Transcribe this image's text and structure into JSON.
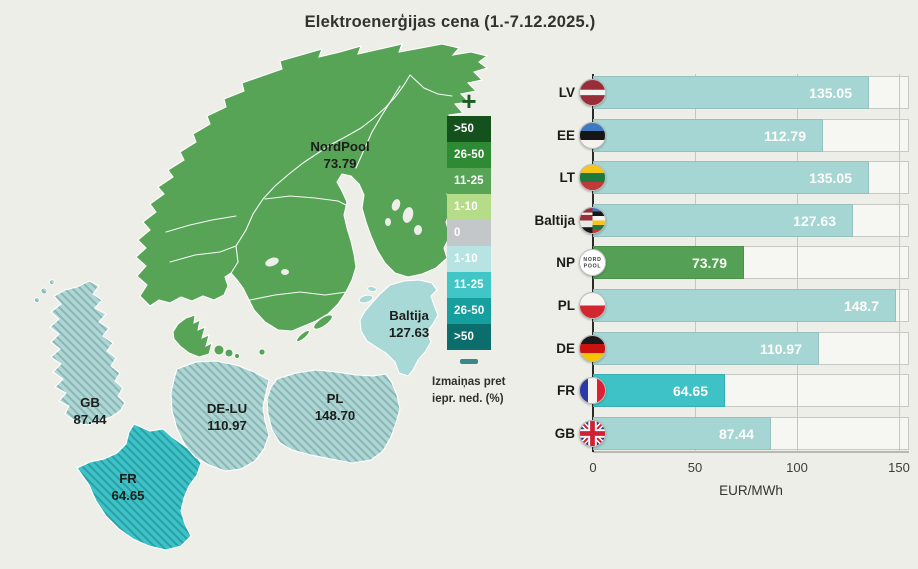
{
  "title": "Elektroenerģijas cena (1.-7.12.2025.)",
  "legend": {
    "plus": "+",
    "minus": "−",
    "caption_line1": "Izmaiņas pret",
    "caption_line2": "iepr. ned. (%)",
    "items": [
      {
        "label": ">50",
        "color": "#15511d"
      },
      {
        "label": "26-50",
        "color": "#2f8a34"
      },
      {
        "label": "11-25",
        "color": "#57a457"
      },
      {
        "label": "1-10",
        "color": "#b5dc88"
      },
      {
        "label": "0",
        "color": "#c3c7ca"
      },
      {
        "label": "1-10",
        "color": "#b7e3e2"
      },
      {
        "label": "11-25",
        "color": "#40c6c6"
      },
      {
        "label": "26-50",
        "color": "#169f9f"
      },
      {
        "label": ">50",
        "color": "#0c6d6d"
      }
    ]
  },
  "map": {
    "sea_color": "#edeee8",
    "nordpool_color": "#57a457",
    "baltic_color": "#a9d9d6",
    "hatched_light_color": "#aed7d4",
    "hatched_bright_color": "#3fc2c6",
    "regions": [
      {
        "id": "nordpool",
        "label": "NordPool",
        "value": "73.79"
      },
      {
        "id": "baltija",
        "label": "Baltija",
        "value": "127.63"
      },
      {
        "id": "pl",
        "label": "PL",
        "value": "148.70"
      },
      {
        "id": "de",
        "label": "DE-LU",
        "value": "110.97"
      },
      {
        "id": "gb",
        "label": "GB",
        "value": "87.44"
      },
      {
        "id": "fr",
        "label": "FR",
        "value": "64.65"
      }
    ]
  },
  "chart_data": {
    "type": "bar",
    "orientation": "horizontal",
    "categories": [
      "LV",
      "EE",
      "LT",
      "Baltija",
      "NP",
      "PL",
      "DE",
      "FR",
      "GB"
    ],
    "values": [
      135.05,
      112.79,
      135.05,
      127.63,
      73.79,
      148.7,
      110.97,
      64.65,
      87.44
    ],
    "value_labels": [
      "135.05",
      "112.79",
      "135.05",
      "127.63",
      "73.79",
      "148.7",
      "110.97",
      "64.65",
      "87.44"
    ],
    "flags": [
      "lv",
      "ee",
      "lt",
      "baltics",
      "nordpool",
      "pl",
      "de",
      "fr",
      "gb"
    ],
    "bar_color_keys": [
      "light",
      "light",
      "light",
      "light",
      "green",
      "light",
      "light",
      "bright",
      "light"
    ],
    "palette": {
      "light": "#a6d6d4",
      "green": "#54a155",
      "bright": "#3fc2c6"
    },
    "value_text_color": "#fdfdfb",
    "xlabel": "EUR/MWh",
    "xticks": [
      "0",
      "50",
      "100",
      "150"
    ],
    "xlim": [
      0,
      155
    ],
    "grid": true,
    "nordpool_logo_text": [
      "NORD",
      "POOL"
    ]
  }
}
